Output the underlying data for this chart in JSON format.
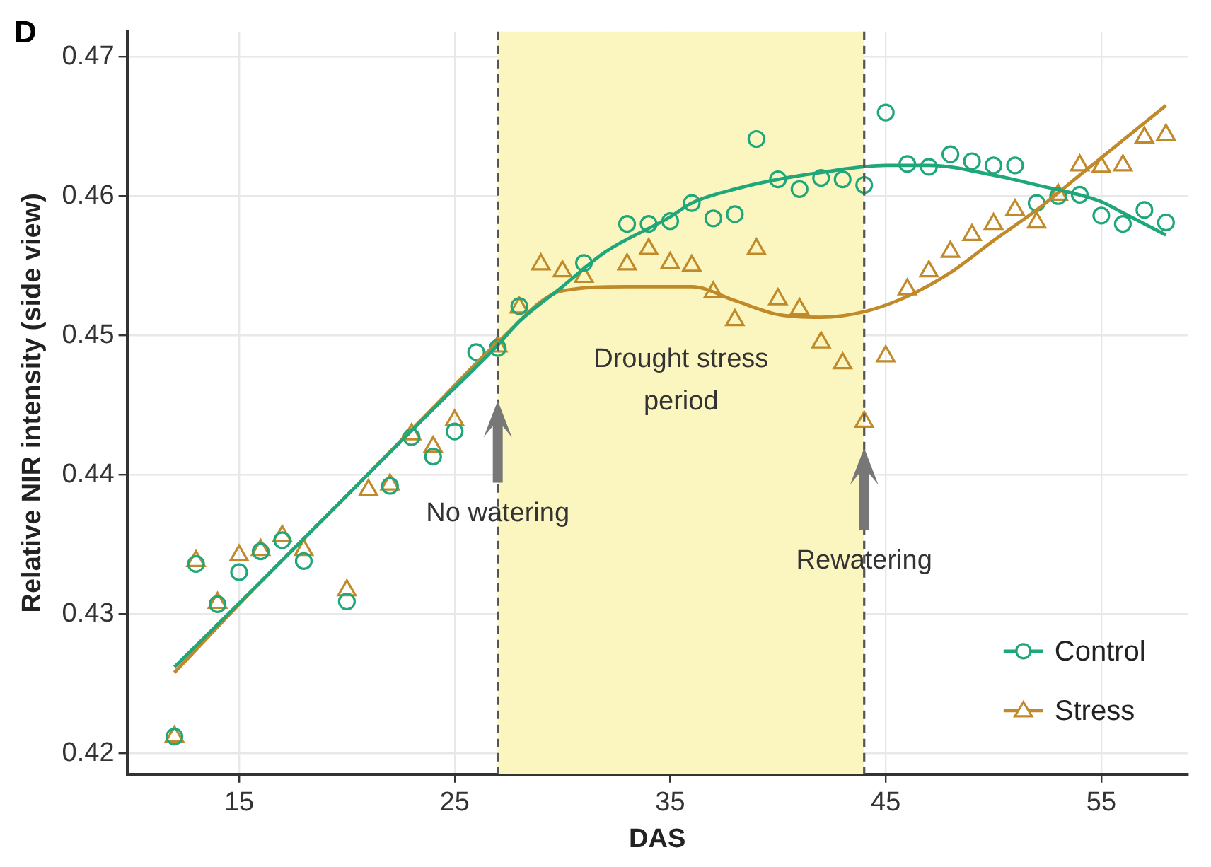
{
  "chart_data": {
    "type": "scatter",
    "title": "D",
    "xlabel": "DAS",
    "ylabel": "Relative NIR intensity (side view)",
    "xlim": [
      9.8,
      59
    ],
    "xticks": [
      15,
      25,
      35,
      45,
      55
    ],
    "ylim": [
      0.4185,
      0.4718
    ],
    "yticks": [
      0.42,
      0.43,
      0.44,
      0.45,
      0.46,
      0.47
    ],
    "grid": true,
    "legend": "bottom right",
    "series": [
      {
        "name": "Control",
        "marker": "circle",
        "color": "#1fa67a",
        "x": [
          12,
          13,
          14,
          15,
          16,
          17,
          18,
          20,
          22,
          23,
          24,
          25,
          26,
          27,
          28,
          31,
          33,
          34,
          35,
          36,
          37,
          38,
          39,
          40,
          41,
          42,
          43,
          44,
          45,
          46,
          47,
          48,
          49,
          50,
          51,
          52,
          53,
          54,
          55,
          56,
          57,
          58
        ],
        "values": [
          0.4212,
          0.4336,
          0.4307,
          0.433,
          0.4345,
          0.4353,
          0.4338,
          0.4309,
          0.4392,
          0.4427,
          0.4413,
          0.4431,
          0.4488,
          0.4491,
          0.4521,
          0.4552,
          0.458,
          0.458,
          0.4582,
          0.4595,
          0.4584,
          0.4587,
          0.4641,
          0.4612,
          0.4605,
          0.4613,
          0.4612,
          0.4608,
          0.466,
          0.4623,
          0.4621,
          0.463,
          0.4625,
          0.4622,
          0.4622,
          0.4595,
          0.46,
          0.4601,
          0.4586,
          0.458,
          0.459,
          0.4581
        ]
      },
      {
        "name": "Stress",
        "marker": "triangle",
        "color": "#c08a2a",
        "x": [
          12,
          13,
          14,
          15,
          16,
          17,
          18,
          20,
          21,
          22,
          23,
          24,
          25,
          27,
          28,
          29,
          30,
          31,
          33,
          34,
          35,
          36,
          37,
          38,
          39,
          40,
          41,
          42,
          43,
          44,
          45,
          46,
          47,
          48,
          49,
          50,
          51,
          52,
          53,
          54,
          55,
          56,
          57,
          58
        ],
        "values": [
          0.4212,
          0.4338,
          0.4308,
          0.4342,
          0.4346,
          0.4356,
          0.4346,
          0.4317,
          0.4389,
          0.4393,
          0.4429,
          0.442,
          0.4439,
          0.4492,
          0.452,
          0.4551,
          0.4546,
          0.4542,
          0.4551,
          0.4562,
          0.4552,
          0.455,
          0.4531,
          0.4511,
          0.4562,
          0.4526,
          0.4519,
          0.4495,
          0.448,
          0.4438,
          0.4485,
          0.4533,
          0.4546,
          0.456,
          0.4572,
          0.458,
          0.459,
          0.4581,
          0.4601,
          0.4622,
          0.4621,
          0.4622,
          0.4642,
          0.4644
        ]
      },
      {
        "type": "line",
        "marker": "none",
        "color": "#1fa67a",
        "x": [
          12,
          16,
          20,
          24,
          27,
          28,
          30,
          32,
          35,
          36,
          38,
          40,
          42,
          45,
          47,
          50,
          52,
          55,
          56,
          58
        ],
        "values": [
          0.4262,
          0.4323,
          0.4385,
          0.4447,
          0.4493,
          0.451,
          0.4535,
          0.456,
          0.4585,
          0.4595,
          0.4605,
          0.4612,
          0.4617,
          0.4622,
          0.4622,
          0.4615,
          0.4608,
          0.4596,
          0.4588,
          0.4572
        ]
      },
      {
        "type": "line",
        "marker": "none",
        "color": "#c08a2a",
        "x": [
          12,
          16,
          20,
          24,
          27,
          30,
          33,
          36,
          38,
          40,
          42,
          44,
          46,
          48,
          50,
          52,
          54,
          56,
          58
        ],
        "values": [
          0.4258,
          0.4323,
          0.4385,
          0.4448,
          0.4495,
          0.4532,
          0.4535,
          0.4535,
          0.4525,
          0.4515,
          0.4513,
          0.4517,
          0.4528,
          0.4545,
          0.4568,
          0.459,
          0.4615,
          0.464,
          0.4665
        ]
      }
    ],
    "bands": [
      {
        "axis": "x",
        "from": 27,
        "to": 44,
        "color": "#fbf6bf"
      }
    ],
    "ref_lines": [
      {
        "axis": "x",
        "value": 27,
        "label": null,
        "line_style": "dashed",
        "color": "#555555"
      },
      {
        "axis": "x",
        "value": 44,
        "label": null,
        "line_style": "dashed",
        "color": "#555555"
      }
    ],
    "annotations": [
      "Drought stress\nperiod",
      {
        "text": "No watering",
        "x": 27,
        "y": 0.4372
      },
      {
        "text": "Rewatering",
        "x": 44,
        "y": 0.4338
      }
    ]
  }
}
